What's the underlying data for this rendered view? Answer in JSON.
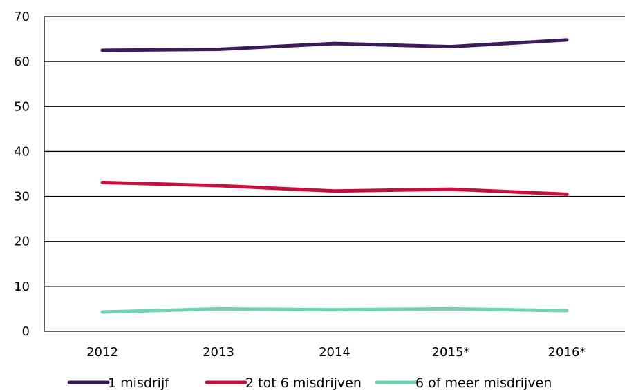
{
  "chart_data": {
    "type": "line",
    "title": "",
    "xlabel": "",
    "ylabel": "",
    "categories": [
      "2012",
      "2013",
      "2014",
      "2015*",
      "2016*"
    ],
    "ylim": [
      0,
      70
    ],
    "yticks": [
      0,
      10,
      20,
      30,
      40,
      50,
      60,
      70
    ],
    "grid": "horizontal",
    "legend_position": "bottom",
    "series": [
      {
        "name": "1 misdrijf",
        "color": "#3d1a5b",
        "values": [
          62.5,
          62.7,
          64.0,
          63.3,
          64.8
        ]
      },
      {
        "name": "2 tot 6 misdrijven",
        "color": "#c8103e",
        "values": [
          33.1,
          32.4,
          31.2,
          31.6,
          30.5
        ]
      },
      {
        "name": "6 of meer misdrijven",
        "color": "#6fd3ac",
        "values": [
          4.3,
          5.0,
          4.8,
          5.0,
          4.6
        ]
      }
    ]
  }
}
